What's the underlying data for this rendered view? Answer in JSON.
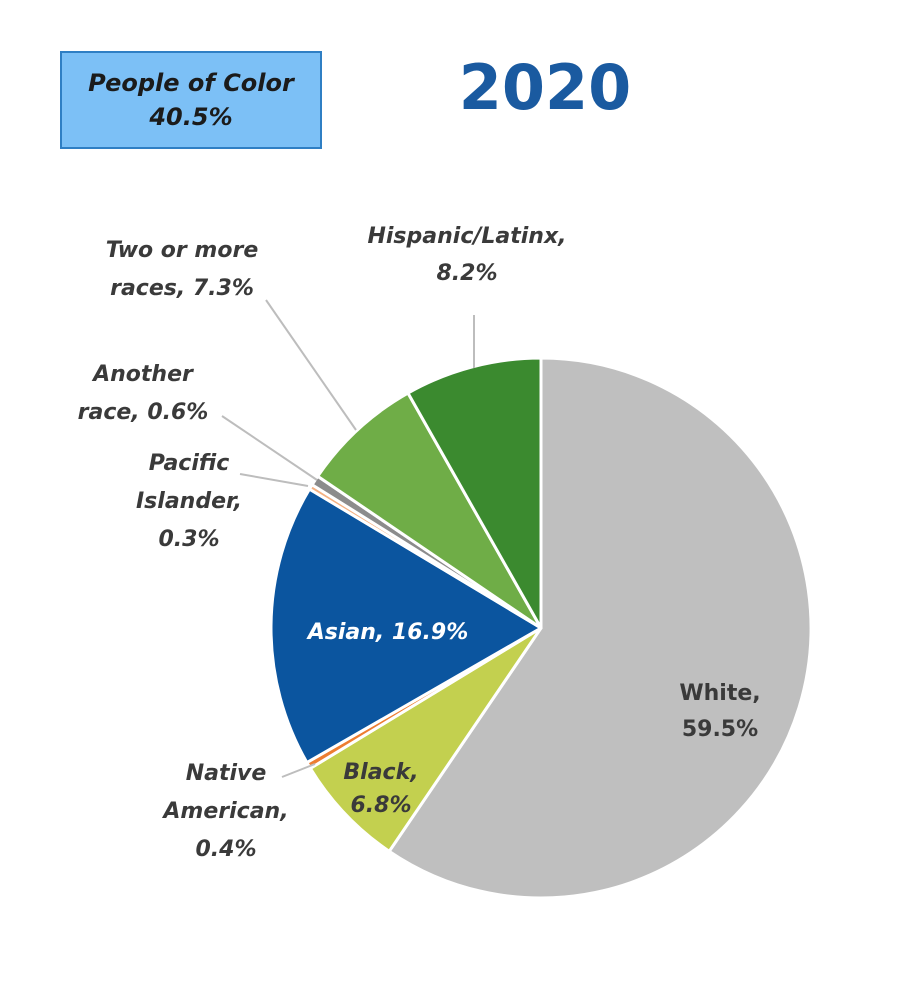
{
  "summary_box": {
    "line1": "People of Color",
    "line2": "40.5%"
  },
  "chart_data": {
    "type": "pie",
    "title": "2020",
    "start_angle_deg": 0,
    "direction": "clockwise",
    "slices": [
      {
        "name": "White",
        "value": 59.5,
        "color": "#bfbfbf",
        "label_lines": [
          "White,",
          "59.5%"
        ]
      },
      {
        "name": "Black",
        "value": 6.8,
        "color": "#c3d04f",
        "label_lines": [
          "Black,",
          "6.8%"
        ]
      },
      {
        "name": "Native American",
        "value": 0.4,
        "color": "#ed7d31",
        "label_lines": [
          "Native",
          "American,",
          "0.4%"
        ]
      },
      {
        "name": "Asian",
        "value": 16.9,
        "color": "#0b559f",
        "label_lines": [
          "Asian, 16.9%"
        ]
      },
      {
        "name": "Pacific Islander",
        "value": 0.3,
        "color": "#f4b183",
        "label_lines": [
          "Pacific",
          "Islander,",
          "0.3%"
        ]
      },
      {
        "name": "Another race",
        "value": 0.6,
        "color": "#8c8c8c",
        "label_lines": [
          "Another",
          "race, 0.6%"
        ]
      },
      {
        "name": "Two or more races",
        "value": 7.3,
        "color": "#6fad47",
        "label_lines": [
          "Two or more",
          "races, 7.3%"
        ]
      },
      {
        "name": "Hispanic/Latinx",
        "value": 8.2,
        "color": "#3b8a2f",
        "label_lines": [
          "Hispanic/Latinx,",
          "8.2%"
        ]
      }
    ]
  }
}
